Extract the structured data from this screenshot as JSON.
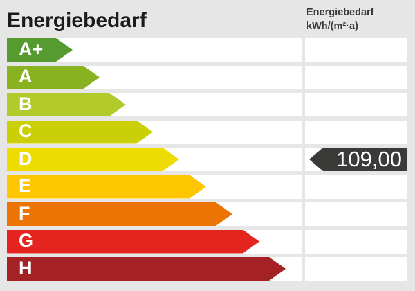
{
  "page": {
    "background": "#e6e6e6",
    "cell_background": "#ffffff"
  },
  "header": {
    "title": "Energiebedarf",
    "unit_label_line1": "Energiebedarf",
    "unit_label_line2": "kWh/(m²·a)"
  },
  "scale": {
    "rows": [
      {
        "label": "A+",
        "color": "#569b2f",
        "arrow_width": 95
      },
      {
        "label": "A",
        "color": "#88b21f",
        "arrow_width": 134
      },
      {
        "label": "B",
        "color": "#b3ca2b",
        "arrow_width": 172
      },
      {
        "label": "C",
        "color": "#cacf06",
        "arrow_width": 211
      },
      {
        "label": "D",
        "color": "#eedc00",
        "arrow_width": 249
      },
      {
        "label": "E",
        "color": "#fdc600",
        "arrow_width": 288
      },
      {
        "label": "F",
        "color": "#ec7405",
        "arrow_width": 326
      },
      {
        "label": "G",
        "color": "#e4251f",
        "arrow_width": 365
      },
      {
        "label": "H",
        "color": "#a42226",
        "arrow_width": 403
      }
    ]
  },
  "value_marker": {
    "display_value": "109,00",
    "category": "D",
    "tag_color": "#3a3a39",
    "text_color": "#ffffff"
  },
  "chart_data": {
    "type": "bar",
    "title": "Energiebedarf",
    "ylabel": "",
    "xlabel": "",
    "unit": "kWh/(m²·a)",
    "categories": [
      "A+",
      "A",
      "B",
      "C",
      "D",
      "E",
      "F",
      "G",
      "H"
    ],
    "values": [
      95,
      134,
      172,
      211,
      249,
      288,
      326,
      365,
      403
    ],
    "series_note": "fixed energy-efficiency rating scale, bar length grows linearly per class",
    "colors": [
      "#569b2f",
      "#88b21f",
      "#b3ca2b",
      "#cacf06",
      "#eedc00",
      "#fdc600",
      "#ec7405",
      "#e4251f",
      "#a42226"
    ],
    "marked_value": {
      "value": 109.0,
      "display": "109,00",
      "category": "D"
    },
    "legend_position": "none",
    "grid": false
  }
}
